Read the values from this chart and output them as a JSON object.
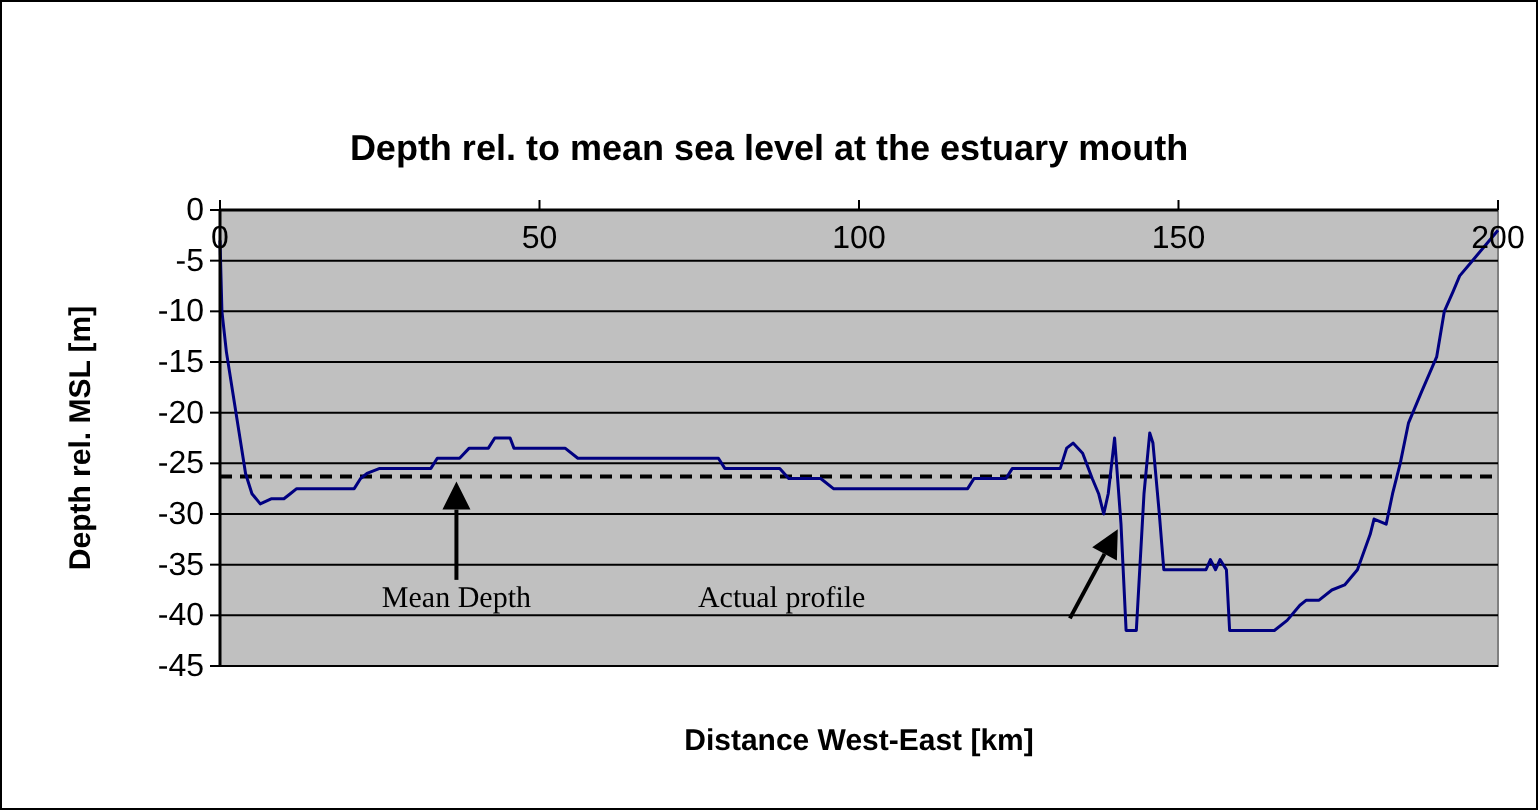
{
  "chart_data": {
    "type": "line",
    "title": "Depth rel. to mean sea level at the estuary mouth",
    "xlabel": "Distance West-East [km]",
    "ylabel": "Depth rel. MSL [m]",
    "xlim": [
      0,
      200
    ],
    "xticks": [
      0,
      50,
      100,
      150,
      200
    ],
    "ylim": [
      -45,
      0
    ],
    "yticks": [
      0,
      -5,
      -10,
      -15,
      -20,
      -25,
      -30,
      -35,
      -40,
      -45
    ],
    "grid": "y",
    "marker": "none",
    "line_style": "solid",
    "series": [
      {
        "color": "#000080",
        "x": [
          0,
          0.3,
          1,
          2,
          3,
          4,
          5,
          6.3,
          8,
          10,
          11,
          12,
          17,
          21,
          22,
          23,
          25,
          28,
          33,
          34,
          37.5,
          39,
          42,
          43,
          45.4,
          46,
          54,
          56,
          78,
          79,
          87.6,
          89,
          94,
          96,
          117,
          118,
          123,
          124,
          131.5,
          132.5,
          133.5,
          135,
          136.5,
          137.5,
          138.3,
          139,
          140,
          141,
          141.8,
          143.4,
          144.6,
          145.5,
          146,
          147,
          147.7,
          154.3,
          155,
          155.8,
          156.5,
          157.5,
          158,
          160.6,
          165,
          167,
          169,
          170,
          172,
          174,
          176,
          178,
          180,
          180.6,
          182.5,
          183.5,
          184.7,
          186,
          188,
          190.4,
          191.6,
          193,
          194,
          196,
          198,
          200
        ],
        "values": [
          -3,
          -10,
          -14,
          -18,
          -22,
          -26,
          -28,
          -29,
          -28.5,
          -28.5,
          -28,
          -27.5,
          -27.5,
          -27.5,
          -26.5,
          -26,
          -25.5,
          -25.5,
          -25.5,
          -24.5,
          -24.5,
          -23.5,
          -23.5,
          -22.5,
          -22.5,
          -23.5,
          -23.5,
          -24.5,
          -24.5,
          -25.5,
          -25.5,
          -26.5,
          -26.5,
          -27.5,
          -27.5,
          -26.5,
          -26.5,
          -25.5,
          -25.5,
          -23.5,
          -23,
          -24,
          -26.5,
          -28,
          -30,
          -28,
          -22.5,
          -31,
          -41.5,
          -41.5,
          -28,
          -22,
          -23,
          -30,
          -35.5,
          -35.5,
          -34.5,
          -35.5,
          -34.5,
          -35.5,
          -41.5,
          -41.5,
          -41.5,
          -40.5,
          -39,
          -38.5,
          -38.5,
          -37.5,
          -37,
          -35.5,
          -32,
          -30.5,
          -31,
          -28,
          -25,
          -21,
          -18,
          -14.5,
          -10,
          -8,
          -6.5,
          -5,
          -3.5,
          -2
        ]
      }
    ],
    "ref_lines": [
      {
        "axis": "y",
        "value": -26.3,
        "color": "#000000",
        "line_style": "dashed"
      }
    ],
    "annotations": [
      "Mean Depth",
      "Actual profile"
    ]
  }
}
